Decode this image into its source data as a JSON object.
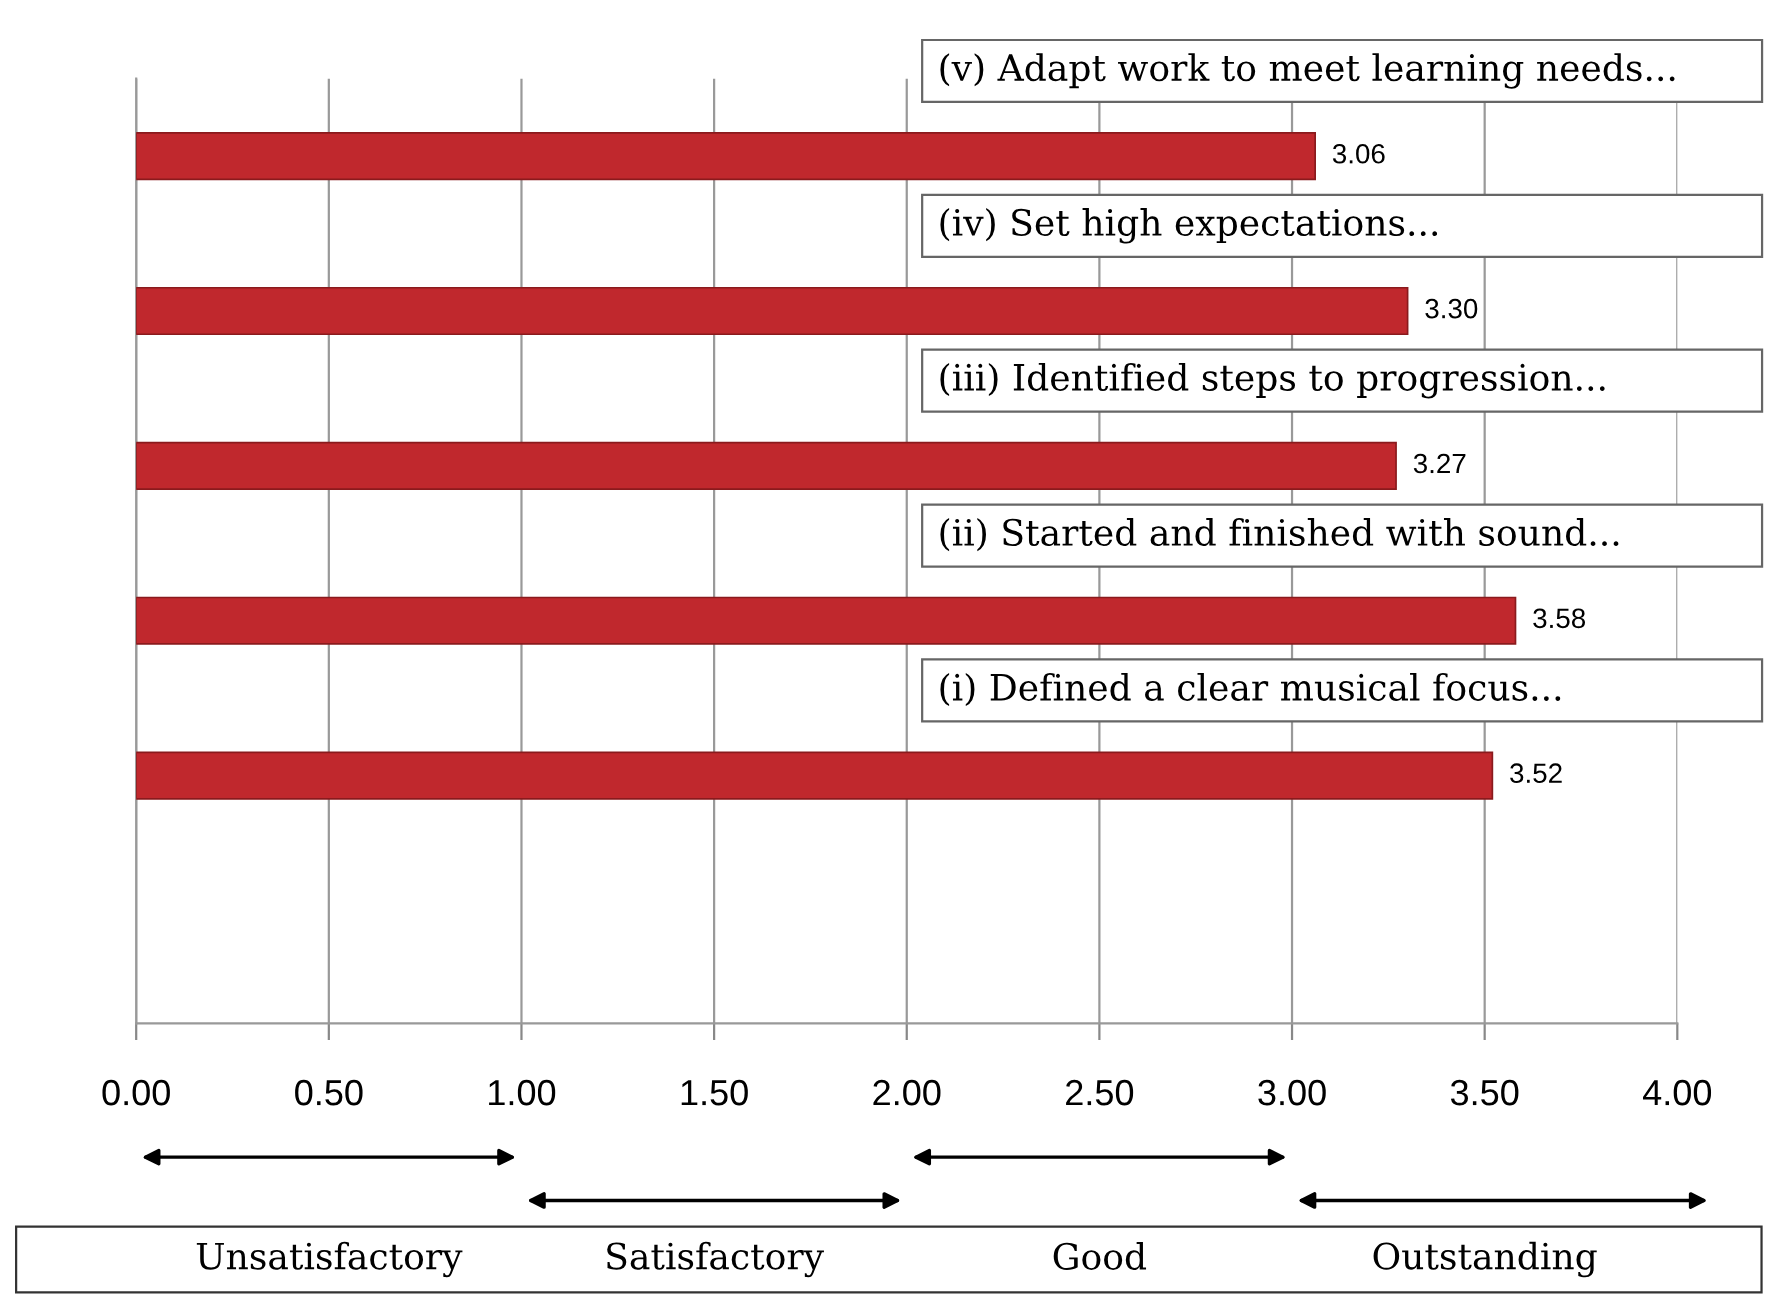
{
  "chart_data": {
    "type": "bar",
    "orientation": "horizontal",
    "categories": [
      "(v) Adapt work to meet learning needs...",
      "(iv) Set high expectations...",
      "(iii) Identified steps to progression...",
      "(ii) Started and finished with sound...",
      "(i) Defined a clear musical focus..."
    ],
    "values": [
      3.06,
      3.3,
      3.27,
      3.58,
      3.52
    ],
    "value_labels": [
      "3.06",
      "3.30",
      "3.27",
      "3.58",
      "3.52"
    ],
    "color": "#c0282d",
    "xlim": [
      0,
      4
    ],
    "xticks": [
      {
        "value": 0,
        "label": "0.00"
      },
      {
        "value": 0.5,
        "label": "0.50"
      },
      {
        "value": 1,
        "label": "1.00"
      },
      {
        "value": 1.5,
        "label": "1.50"
      },
      {
        "value": 2,
        "label": "2.00"
      },
      {
        "value": 2.5,
        "label": "2.50"
      },
      {
        "value": 3,
        "label": "3.00"
      },
      {
        "value": 3.5,
        "label": "3.50"
      },
      {
        "value": 4,
        "label": "4.00"
      }
    ],
    "grid": "x",
    "annotations": [
      "Unsatisfactory",
      "Satisfactory",
      "Good",
      "Outstanding"
    ]
  }
}
